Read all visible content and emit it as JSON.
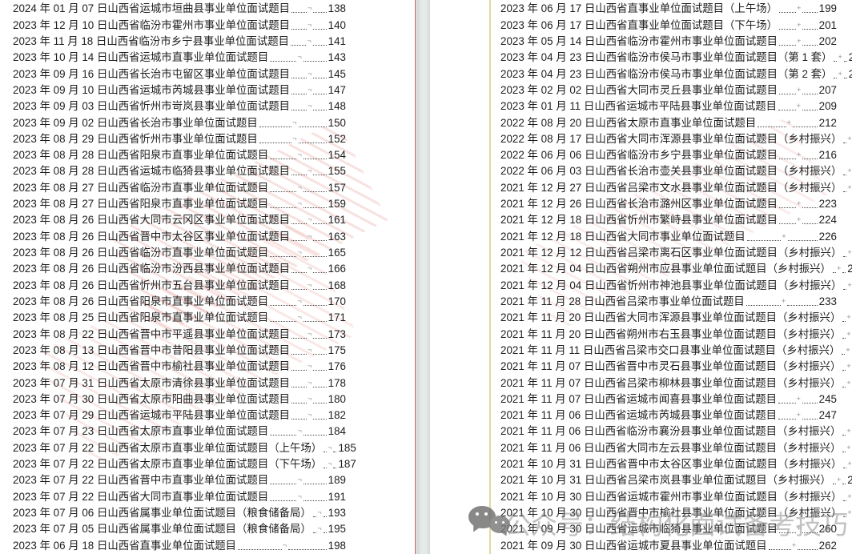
{
  "document": {
    "leader_mark_left": "¬",
    "leader_mark_right": "+",
    "watermark": {
      "text": "公众号：结构化面试备考技巧"
    },
    "colors": {
      "gutter_band": "#dde4e2",
      "red_guide_line": "#a23a30",
      "yellow_guide_line": "#c6b446",
      "stamp_red": "#d76e64",
      "watermark_gray": "#808080",
      "text": "#1d1d1d"
    },
    "toc_left": [
      {
        "title": "2024 年 01 月 07 日山西省运城市垣曲县事业单位面试题目",
        "page": "138"
      },
      {
        "title": "2023 年 12 月 10 日山西省临汾市霍州市事业单位面试题目",
        "page": "140"
      },
      {
        "title": "2023 年 11 月 18 日山西省临汾市乡宁县事业单位面试题目",
        "page": "141"
      },
      {
        "title": "2023 年 10 月 14 日山西省运城市直事业单位面试题目",
        "page": "143"
      },
      {
        "title": "2023 年 09 月 16 日山西省长治市屯留区事业单位面试题目",
        "page": "145"
      },
      {
        "title": "2023 年 09 月 10 日山西省运城市芮城县事业单位面试题目",
        "page": "147"
      },
      {
        "title": "2023 年 09 月 03 日山西省忻州市岢岚县事业单位面试题目",
        "page": "148"
      },
      {
        "title": "2023 年 09 月 02 日山西省长治市事业单位面试题目",
        "page": "150"
      },
      {
        "title": "2023 年 08 月 29 日山西省忻州市事业单位面试题目",
        "page": "152"
      },
      {
        "title": "2023 年 08 月 28 日山西省阳泉市直事业单位面试题目",
        "page": "154"
      },
      {
        "title": "2023 年 08 月 28 日山西省运城市临猗县事业单位面试题目",
        "page": "155"
      },
      {
        "title": "2023 年 08 月 27 日山西省临汾市直事业单位面试题目",
        "page": "157"
      },
      {
        "title": "2023 年 08 月 27 日山西省阳泉市直事业单位面试题目",
        "page": "159"
      },
      {
        "title": "2023 年 08 月 26 日山西省大同市云冈区事业单位面试题目",
        "page": "161"
      },
      {
        "title": "2023 年 08 月 26 日山西省晋中市太谷区事业单位面试题目",
        "page": "163"
      },
      {
        "title": "2023 年 08 月 26 日山西省临汾市直事业单位面试题目",
        "page": "165"
      },
      {
        "title": "2023 年 08 月 26 日山西省临汾市汾西县事业单位面试题目",
        "page": "166"
      },
      {
        "title": "2023 年 08 月 26 日山西省忻州市五台县事业单位面试题目",
        "page": "168"
      },
      {
        "title": "2023 年 08 月 26 日山西省阳泉市直事业单位面试题目",
        "page": "170"
      },
      {
        "title": "2023 年 08 月 25 日山西省阳泉市直事业单位面试题目",
        "page": "171"
      },
      {
        "title": "2023 年 08 月 22 日山西省晋中市平遥县事业单位面试题目",
        "page": "173"
      },
      {
        "title": "2023 年 08 月 13 日山西省晋中市昔阳县事业单位面试题目",
        "page": "175"
      },
      {
        "title": "2023 年 08 月 12 日山西省晋中市榆社县事业单位面试题目",
        "page": "176"
      },
      {
        "title": "2023 年 07 月 31 日山西省太原市清徐县事业单位面试题目",
        "page": "178"
      },
      {
        "title": "2023 年 07 月 30 日山西省太原市阳曲县事业单位面试题目",
        "page": "180"
      },
      {
        "title": "2023 年 07 月 29 日山西省运城市平陆县事业单位面试题目",
        "page": "182"
      },
      {
        "title": "2023 年 07 月 23 日山西省太原市直事业单位面试题目",
        "page": "184"
      },
      {
        "title": "2023 年 07 月 22 日山西省太原市直事业单位面试题目（上午场）",
        "page": "185"
      },
      {
        "title": "2023 年 07 月 22 日山西省太原市直事业单位面试题目（下午场）",
        "page": "187"
      },
      {
        "title": "2023 年 07 月 22 日山西省晋中市直事业单位面试题目",
        "page": "189"
      },
      {
        "title": "2023 年 07 月 22 日山西省大同市直事业单位面试题目",
        "page": "191"
      },
      {
        "title": "2023 年 07 月 06 日山西省属事业单位面试题目（粮食储备局）",
        "page": "193"
      },
      {
        "title": "2023 年 07 月 05 日山西省属事业单位面试题目（粮食储备局）",
        "page": "195"
      },
      {
        "title": "2023 年 06 月 18 日山西省直事业单位面试题目",
        "page": "198"
      }
    ],
    "toc_right": [
      {
        "title": "2023 年 06 月 17 日山西省直事业单位面试题目（上午场）",
        "page": "199"
      },
      {
        "title": "2023 年 06 月 17 日山西省直事业单位面试题目（下午场）",
        "page": "201"
      },
      {
        "title": "2023 年 05 月 14 日山西省临汾市霍州市事业单位面试题目",
        "page": "202"
      },
      {
        "title": "2023 年 04 月 23 日山西省临汾市侯马市事业单位面试题目（第 1 套）",
        "page": "204"
      },
      {
        "title": "2023 年 04 月 23 日山西省临汾市侯马市事业单位面试题目（第 2 套）",
        "page": "206"
      },
      {
        "title": "2023 年 02 月 02 日山西省大同市灵丘县事业单位面试题目",
        "page": "207"
      },
      {
        "title": "2023 年 01 月 11 日山西省运城市平陆县事业单位面试题目",
        "page": "209"
      },
      {
        "title": "2022 年 08 月 20 日山西省太原市直事业单位面试题目",
        "page": "212"
      },
      {
        "title": "2022 年 08 月 17 日山西省大同市浑源县事业单位面试题目（乡村振兴）",
        "page": "214"
      },
      {
        "title": "2022 年 06 月 06 日山西省临汾市乡宁县事业单位面试题目",
        "page": "216"
      },
      {
        "title": "2022 年 06 月 03 日山西省长治市壶关县事业单位面试题目（乡村振兴）",
        "page": "218"
      },
      {
        "title": "2021 年 12 月 27 日山西省吕梁市文水县事业单位面试题目（乡村振兴）",
        "page": "221"
      },
      {
        "title": "2021 年 12 月 26 日山西省长治市潞州区事业单位面试题目",
        "page": "223"
      },
      {
        "title": "2021 年 12 月 18 日山西省忻州市繁峙县事业单位面试题目",
        "page": "224"
      },
      {
        "title": "2021 年 12 月 18 日山西省大同市事业单位面试题目",
        "page": "226"
      },
      {
        "title": "2021 年 12 月 12 日山西省吕梁市离石区事业单位面试题目（乡村振兴）",
        "page": "228"
      },
      {
        "title": "2021 年 12 月 04 日山西省朔州市应县事业单位面试题目（乡村振兴）",
        "page": "229"
      },
      {
        "title": "2021 年 12 月 04 日山西省忻州市神池县事业单位面试题目（乡村振兴）",
        "page": "231"
      },
      {
        "title": "2021 年 11 月 28 日山西省吕梁市事业单位面试题目",
        "page": "233"
      },
      {
        "title": "2021 年 11 月 20 日山西省大同市浑源县事业单位面试题目（乡村振兴）",
        "page": "236"
      },
      {
        "title": "2021 年 11 月 20 日山西省朔州市右玉县事业单位面试题目（乡村振兴）",
        "page": "237"
      },
      {
        "title": "2021 年 11 月 11 日山西省吕梁市交口县事业单位面试题目（乡村振兴）",
        "page": "239"
      },
      {
        "title": "2021 年 11 月 07 日山西省晋中市灵石县事业单位面试题目（乡村振兴）",
        "page": "241"
      },
      {
        "title": "2021 年 11 月 07 日山西省吕梁市柳林县事业单位面试题目（乡村振兴）",
        "page": "243"
      },
      {
        "title": "2021 年 11 月 07 日山西省运城市闻喜县事业单位面试题目",
        "page": "245"
      },
      {
        "title": "2021 年 11 月 06 日山西省运城市芮城县事业单位面试题目",
        "page": "247"
      },
      {
        "title": "2021 年 11 月 06 日山西省临汾市襄汾县事业单位面试题目（乡村振兴）",
        "page": "249"
      },
      {
        "title": "2021 年 11 月 06 日山西省大同市左云县事业单位面试题目（乡村振兴）",
        "page": "250"
      },
      {
        "title": "2021 年 10 月 31 日山西省晋中市太谷区事业单位面试题目（乡村振兴）",
        "page": "252"
      },
      {
        "title": "2021 年 10 月 31 日山西省吕梁市岚县事业单位面试题目（乡村振兴）",
        "page": "254"
      },
      {
        "title": "2021 年 10 月 30 日山西省运城市霍州市事业单位面试题目（乡村振兴）",
        "page": "256"
      },
      {
        "title": "2021 年 10 月 30 日山西省晋中市榆社县事业单位面试题目（乡村振兴）",
        "page": "257"
      },
      {
        "title": "2021 年 09 月 30 日山西省运城市临猗县事业单位面试题目",
        "page": "260"
      },
      {
        "title": "2021 年 09 月 30 日山西省运城市夏县事业单位面试题目",
        "page": "262"
      }
    ]
  }
}
